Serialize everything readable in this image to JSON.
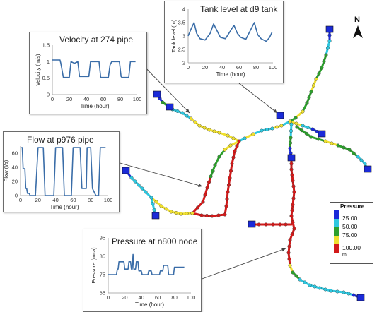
{
  "colors": {
    "low": "#1a2ad8",
    "cyan": "#2ec8e0",
    "green": "#2da02d",
    "yellow": "#f0e030",
    "red": "#d21a1a",
    "line": "#3a6da8",
    "pointer": "#444444"
  },
  "north_arrow": {
    "label": "N"
  },
  "legend": {
    "title": "Pressure",
    "unit": "m",
    "entries": [
      {
        "label": "25.00",
        "color": "#1a2ad8"
      },
      {
        "label": "50.00",
        "color": "#2ec8e0"
      },
      {
        "label": "75.00",
        "color": "#2da02d"
      },
      {
        "label": "",
        "color": "#f0e030"
      },
      {
        "label": "100.00",
        "color": "#d21a1a"
      }
    ]
  },
  "chart_data": [
    {
      "type": "line",
      "title": "Velocity at 274 pipe",
      "xlabel": "Time (hour)",
      "ylabel": "Velocity (m/s)",
      "xlim": [
        0,
        100
      ],
      "ylim": [
        0,
        1.5
      ],
      "xticks": [
        0,
        20,
        40,
        60,
        80,
        100
      ],
      "yticks": [
        0,
        0.5,
        1,
        1.5
      ],
      "xtick_labels": [
        "0",
        "20",
        "40",
        "60",
        "80",
        "100"
      ],
      "ytick_labels": [
        "0",
        "0.5",
        "1",
        "1.5"
      ],
      "series": [
        {
          "values": [
            [
              0,
              1.05
            ],
            [
              9,
              1.05
            ],
            [
              10,
              0.95
            ],
            [
              13,
              0.52
            ],
            [
              20,
              0.52
            ],
            [
              22,
              1.0
            ],
            [
              26,
              0.95
            ],
            [
              30,
              1.0
            ],
            [
              32,
              0.55
            ],
            [
              43,
              0.55
            ],
            [
              45,
              1.0
            ],
            [
              55,
              1.0
            ],
            [
              57,
              0.52
            ],
            [
              66,
              0.52
            ],
            [
              68,
              0.9
            ],
            [
              70,
              1.0
            ],
            [
              79,
              1.0
            ],
            [
              81,
              0.55
            ],
            [
              82,
              0.52
            ],
            [
              90,
              0.52
            ],
            [
              92,
              1.0
            ],
            [
              98,
              1.0
            ]
          ]
        }
      ]
    },
    {
      "type": "line",
      "title": "Tank level at d9 tank",
      "xlabel": "Time (hour)",
      "ylabel": "Tank level (m)",
      "xlim": [
        0,
        100
      ],
      "ylim": [
        2,
        4
      ],
      "xticks": [
        0,
        20,
        40,
        60,
        80,
        100
      ],
      "yticks": [
        2,
        2.5,
        3,
        3.5,
        4
      ],
      "xtick_labels": [
        "0",
        "20",
        "40",
        "60",
        "80",
        "100"
      ],
      "ytick_labels": [
        "2",
        "2.5",
        "3",
        "3.5",
        "4"
      ],
      "series": [
        {
          "values": [
            [
              0,
              3.0
            ],
            [
              4,
              3.3
            ],
            [
              7,
              3.5
            ],
            [
              10,
              3.1
            ],
            [
              14,
              2.9
            ],
            [
              20,
              2.85
            ],
            [
              26,
              3.1
            ],
            [
              30,
              3.45
            ],
            [
              34,
              3.2
            ],
            [
              38,
              2.95
            ],
            [
              44,
              2.9
            ],
            [
              50,
              3.2
            ],
            [
              54,
              3.4
            ],
            [
              58,
              3.1
            ],
            [
              62,
              2.95
            ],
            [
              68,
              2.88
            ],
            [
              74,
              3.25
            ],
            [
              78,
              3.5
            ],
            [
              82,
              3.05
            ],
            [
              86,
              2.9
            ],
            [
              92,
              2.8
            ],
            [
              96,
              2.95
            ],
            [
              99,
              3.15
            ]
          ]
        }
      ]
    },
    {
      "type": "line",
      "title": "Flow at p976 pipe",
      "xlabel": "Time (hour)",
      "ylabel": "Flow (l/s)",
      "xlim": [
        0,
        100
      ],
      "ylim": [
        0,
        70
      ],
      "xticks": [
        0,
        20,
        40,
        60,
        80,
        100
      ],
      "yticks": [
        0,
        20,
        40,
        60
      ],
      "xtick_labels": [
        "0",
        "20",
        "40",
        "60",
        "80",
        "100"
      ],
      "ytick_labels": [
        "0",
        "20",
        "40",
        "60"
      ],
      "series": [
        {
          "values": [
            [
              1,
              68
            ],
            [
              2,
              68
            ],
            [
              3,
              38
            ],
            [
              5,
              38
            ],
            [
              6,
              10
            ],
            [
              7,
              10
            ],
            [
              8,
              3
            ],
            [
              10,
              3
            ],
            [
              11,
              0
            ],
            [
              17,
              0
            ],
            [
              20,
              68
            ],
            [
              26,
              68
            ],
            [
              28,
              0
            ],
            [
              38,
              0
            ],
            [
              40,
              68
            ],
            [
              48,
              68
            ],
            [
              50,
              0
            ],
            [
              58,
              0
            ],
            [
              60,
              68
            ],
            [
              68,
              68
            ],
            [
              70,
              10
            ],
            [
              75,
              10
            ],
            [
              76,
              68
            ],
            [
              80,
              68
            ],
            [
              82,
              10
            ],
            [
              86,
              0
            ],
            [
              89,
              0
            ],
            [
              91,
              68
            ],
            [
              97,
              68
            ]
          ]
        }
      ]
    },
    {
      "type": "line",
      "title": "Pressure at n800 node",
      "xlabel": "Time (hour)",
      "ylabel": "Pressure (mca)",
      "xlim": [
        0,
        100
      ],
      "ylim": [
        65,
        95
      ],
      "xticks": [
        0,
        20,
        40,
        60,
        80,
        100
      ],
      "yticks": [
        65,
        75,
        85,
        95
      ],
      "xtick_labels": [
        "0",
        "20",
        "40",
        "60",
        "80",
        "100"
      ],
      "ytick_labels": [
        "65",
        "75",
        "85",
        "95"
      ],
      "series": [
        {
          "values": [
            [
              0,
              75
            ],
            [
              10,
              75
            ],
            [
              11,
              78
            ],
            [
              12,
              78
            ],
            [
              13,
              82
            ],
            [
              19,
              82
            ],
            [
              20,
              78
            ],
            [
              24,
              78
            ],
            [
              25,
              82
            ],
            [
              27,
              82
            ],
            [
              28,
              78
            ],
            [
              29,
              78
            ],
            [
              30,
              86
            ],
            [
              31,
              78
            ],
            [
              33,
              78
            ],
            [
              34,
              82
            ],
            [
              36,
              82
            ],
            [
              37,
              77
            ],
            [
              40,
              77
            ],
            [
              41,
              75
            ],
            [
              48,
              75
            ],
            [
              49,
              77
            ],
            [
              52,
              77
            ],
            [
              53,
              75
            ],
            [
              62,
              75
            ],
            [
              63,
              77
            ],
            [
              66,
              77
            ],
            [
              67,
              80
            ],
            [
              72,
              80
            ],
            [
              73,
              75
            ],
            [
              79,
              75
            ],
            [
              80,
              79
            ],
            [
              92,
              79
            ]
          ]
        }
      ]
    }
  ]
}
